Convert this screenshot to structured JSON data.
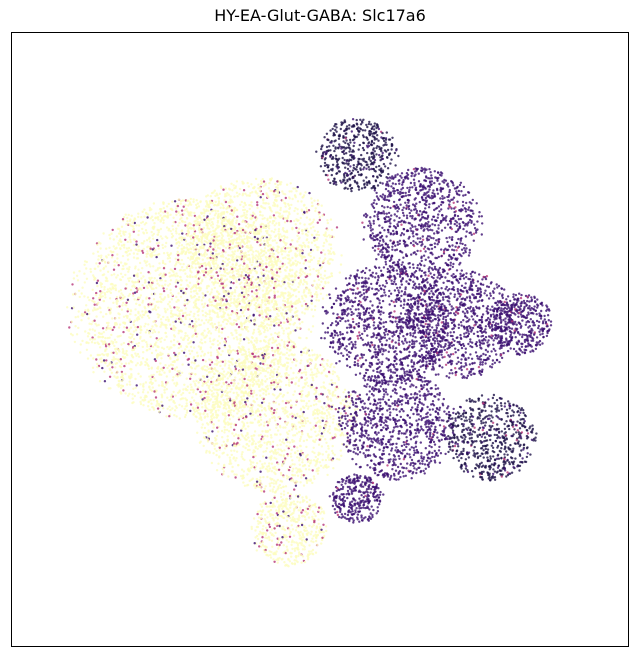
{
  "chart_data": {
    "type": "scatter",
    "title": "HY-EA-Glut-GABA: Slc17a6",
    "xlabel": "",
    "ylabel": "",
    "show_ticks": false,
    "grid": false,
    "legend": "none",
    "colormap": "magma",
    "colors": {
      "low": "#fcfdbf",
      "mid": "#b73779",
      "high": "#3b0f70",
      "highest": "#1d1147"
    },
    "series": [
      {
        "values_description_free": true,
        "clusters": [
          {
            "cx": -0.42,
            "cy": 0.1,
            "r": 0.36,
            "level": 0.05
          },
          {
            "cx": -0.2,
            "cy": 0.28,
            "r": 0.25,
            "level": 0.05
          },
          {
            "cx": -0.15,
            "cy": -0.25,
            "r": 0.25,
            "level": 0.08
          },
          {
            "cx": -0.1,
            "cy": -0.62,
            "r": 0.12,
            "level": 0.18
          },
          {
            "cx": 0.12,
            "cy": 0.6,
            "r": 0.12,
            "level": 0.95
          },
          {
            "cx": 0.33,
            "cy": 0.38,
            "r": 0.18,
            "level": 0.9
          },
          {
            "cx": 0.22,
            "cy": 0.05,
            "r": 0.2,
            "level": 0.88
          },
          {
            "cx": 0.45,
            "cy": 0.05,
            "r": 0.18,
            "level": 0.92
          },
          {
            "cx": 0.25,
            "cy": -0.28,
            "r": 0.18,
            "level": 0.9
          },
          {
            "cx": 0.55,
            "cy": -0.32,
            "r": 0.14,
            "level": 0.98
          },
          {
            "cx": 0.65,
            "cy": 0.05,
            "r": 0.1,
            "level": 0.9
          },
          {
            "cx": 0.12,
            "cy": -0.52,
            "r": 0.08,
            "level": 0.92
          }
        ]
      }
    ],
    "xlim": [
      -1,
      1
    ],
    "ylim": [
      -1,
      1
    ]
  }
}
